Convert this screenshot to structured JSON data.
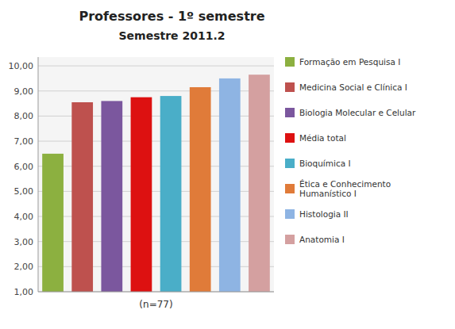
{
  "chart_data": {
    "type": "bar",
    "title": "Professores - 1º semestre",
    "subtitle": "Semestre 2011.2",
    "x_label": "(n=77)",
    "categories": [
      "Formação em Pesquisa I",
      "Medicina Social e Clínica I",
      "Biologia Molecular e Celular",
      "Média total",
      "Bioquímica I",
      "Ética e Conhecimento\nHumanístico I",
      "Histologia II",
      "Anatomia I"
    ],
    "values": [
      6.5,
      8.55,
      8.6,
      8.75,
      8.8,
      9.15,
      9.5,
      9.65
    ],
    "colors": [
      "#8cb040",
      "#be514e",
      "#7b579e",
      "#dd1111",
      "#4aaec8",
      "#e07b39",
      "#8eb4e3",
      "#d4a0a0"
    ],
    "ylim": [
      1.0,
      10.35
    ],
    "yticks": [
      {
        "value": 1.0,
        "label": "1,00"
      },
      {
        "value": 2.0,
        "label": "2,00"
      },
      {
        "value": 3.0,
        "label": "3,00"
      },
      {
        "value": 4.0,
        "label": "4,00"
      },
      {
        "value": 5.0,
        "label": "5,00"
      },
      {
        "value": 6.0,
        "label": "6,00"
      },
      {
        "value": 7.0,
        "label": "7,00"
      },
      {
        "value": 8.0,
        "label": "8,00"
      },
      {
        "value": 9.0,
        "label": "9,00"
      },
      {
        "value": 10.0,
        "label": "10,00"
      }
    ],
    "grid": true,
    "legend": "right",
    "tick_labels": "y"
  }
}
